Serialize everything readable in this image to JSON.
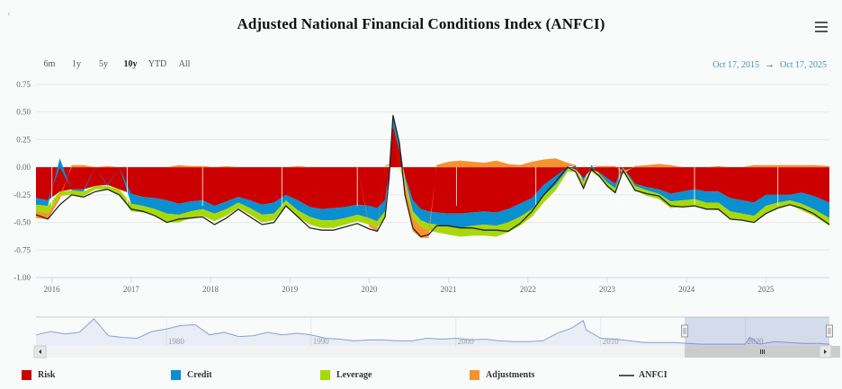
{
  "header": {
    "title": "Adjusted National Financial Conditions Index (ANFCI)",
    "collapse_icon": "chevron-right-icon",
    "menu_icon": "hamburger-menu-icon"
  },
  "range_selector": {
    "buttons": [
      "6m",
      "1y",
      "5y",
      "10y",
      "YTD",
      "All"
    ],
    "active": "10y"
  },
  "date_range": {
    "from": "Oct 17, 2015",
    "arrow": "→",
    "to": "Oct 17, 2025"
  },
  "navigator": {
    "tick_labels": [
      "1980",
      "1990",
      "2000",
      "2010",
      "2020"
    ],
    "selected_from": 2015.8,
    "selected_to": 2025.8,
    "scroll_left_icon": "arrow-left-icon",
    "scroll_right_icon": "arrow-right-icon",
    "grip_icon": "grip-icon"
  },
  "chart_data": {
    "type": "area",
    "stacking": "diverging",
    "title": "Adjusted National Financial Conditions Index (ANFCI)",
    "xlabel": "",
    "ylabel": "",
    "xlim": [
      2015.8,
      2025.8
    ],
    "ylim": [
      -1.0,
      0.75
    ],
    "yticks": [
      0.75,
      0.5,
      0.25,
      0.0,
      -0.25,
      -0.5,
      -0.75,
      -1.0
    ],
    "ytick_labels": [
      "0.75",
      "0.50",
      "0.25",
      "0.00",
      "-0.25",
      "-0.50",
      "-0.75",
      "-1.00"
    ],
    "xticks": [
      2016,
      2017,
      2018,
      2019,
      2020,
      2021,
      2022,
      2023,
      2024,
      2025
    ],
    "xtick_labels": [
      "2016",
      "2017",
      "2018",
      "2019",
      "2020",
      "2021",
      "2022",
      "2023",
      "2024",
      "2025"
    ],
    "grid": true,
    "legend": "bottom",
    "x": [
      2015.8,
      2015.95,
      2016.1,
      2016.25,
      2016.4,
      2016.55,
      2016.7,
      2016.85,
      2017.0,
      2017.15,
      2017.3,
      2017.45,
      2017.6,
      2017.75,
      2017.9,
      2018.05,
      2018.2,
      2018.35,
      2018.5,
      2018.65,
      2018.8,
      2018.95,
      2019.1,
      2019.25,
      2019.4,
      2019.55,
      2019.7,
      2019.85,
      2020.0,
      2020.1,
      2020.2,
      2020.25,
      2020.3,
      2020.38,
      2020.45,
      2020.55,
      2020.65,
      2020.75,
      2020.85,
      2021.0,
      2021.15,
      2021.3,
      2021.45,
      2021.6,
      2021.75,
      2021.9,
      2022.05,
      2022.2,
      2022.35,
      2022.5,
      2022.6,
      2022.7,
      2022.8,
      2022.9,
      2023.0,
      2023.1,
      2023.2,
      2023.35,
      2023.5,
      2023.65,
      2023.8,
      2023.95,
      2024.1,
      2024.25,
      2024.4,
      2024.55,
      2024.7,
      2024.85,
      2025.0,
      2025.15,
      2025.3,
      2025.45,
      2025.6,
      2025.8
    ],
    "series": [
      {
        "name": "Risk",
        "color": "#cc0000",
        "values": [
          -0.28,
          -0.3,
          -0.22,
          -0.2,
          -0.2,
          -0.17,
          -0.16,
          -0.2,
          -0.24,
          -0.27,
          -0.28,
          -0.3,
          -0.33,
          -0.31,
          -0.3,
          -0.35,
          -0.31,
          -0.27,
          -0.3,
          -0.34,
          -0.32,
          -0.25,
          -0.3,
          -0.36,
          -0.38,
          -0.37,
          -0.36,
          -0.34,
          -0.35,
          -0.37,
          -0.3,
          -0.1,
          0.38,
          0.15,
          -0.08,
          -0.3,
          -0.38,
          -0.4,
          -0.41,
          -0.42,
          -0.42,
          -0.41,
          -0.4,
          -0.41,
          -0.38,
          -0.33,
          -0.28,
          -0.16,
          -0.08,
          0.0,
          -0.02,
          -0.1,
          -0.02,
          -0.05,
          -0.1,
          -0.15,
          0.0,
          -0.15,
          -0.18,
          -0.2,
          -0.24,
          -0.22,
          -0.2,
          -0.22,
          -0.22,
          -0.28,
          -0.3,
          -0.32,
          -0.25,
          -0.25,
          -0.25,
          -0.23,
          -0.26,
          -0.32
        ]
      },
      {
        "name": "Credit",
        "color": "#0a8fd0",
        "values": [
          -0.06,
          -0.05,
          0.08,
          -0.01,
          -0.02,
          0.0,
          -0.01,
          0.0,
          -0.09,
          -0.08,
          -0.1,
          -0.12,
          -0.1,
          -0.09,
          -0.08,
          -0.07,
          -0.07,
          -0.05,
          -0.07,
          -0.09,
          -0.1,
          -0.05,
          -0.09,
          -0.09,
          -0.1,
          -0.11,
          -0.1,
          -0.09,
          -0.11,
          -0.12,
          -0.1,
          0.02,
          0.1,
          0.08,
          -0.02,
          -0.1,
          -0.1,
          -0.11,
          -0.11,
          -0.12,
          -0.13,
          -0.12,
          -0.12,
          -0.12,
          -0.12,
          -0.12,
          -0.1,
          -0.1,
          -0.08,
          -0.02,
          0.02,
          -0.03,
          0.02,
          -0.01,
          -0.04,
          -0.04,
          -0.01,
          -0.02,
          -0.03,
          -0.04,
          -0.07,
          -0.08,
          -0.09,
          -0.1,
          -0.1,
          -0.12,
          -0.12,
          -0.12,
          -0.1,
          -0.07,
          -0.05,
          -0.1,
          -0.12,
          -0.14
        ]
      },
      {
        "name": "Leverage",
        "color": "#a8d80a",
        "values": [
          -0.06,
          -0.07,
          -0.04,
          -0.04,
          -0.04,
          -0.03,
          -0.03,
          -0.05,
          -0.07,
          -0.06,
          -0.06,
          -0.08,
          -0.07,
          -0.06,
          -0.06,
          -0.07,
          -0.06,
          -0.05,
          -0.06,
          -0.07,
          -0.06,
          -0.05,
          -0.06,
          -0.07,
          -0.07,
          -0.07,
          -0.06,
          -0.06,
          -0.06,
          -0.06,
          -0.05,
          -0.02,
          0.0,
          -0.01,
          -0.03,
          -0.06,
          -0.06,
          -0.06,
          -0.07,
          -0.07,
          -0.08,
          -0.09,
          -0.1,
          -0.1,
          -0.09,
          -0.08,
          -0.07,
          -0.06,
          -0.05,
          -0.02,
          -0.02,
          -0.04,
          -0.02,
          -0.03,
          -0.04,
          -0.05,
          -0.02,
          -0.04,
          -0.05,
          -0.05,
          -0.06,
          -0.06,
          -0.06,
          -0.06,
          -0.07,
          -0.07,
          -0.06,
          -0.06,
          -0.07,
          -0.05,
          -0.04,
          -0.06,
          -0.06,
          -0.07
        ]
      },
      {
        "name": "Adjustments",
        "color": "#f7922f",
        "values": [
          -0.06,
          -0.05,
          -0.03,
          0.02,
          0.02,
          0.0,
          0.01,
          0.0,
          0.0,
          0.0,
          0.0,
          0.0,
          0.02,
          0.01,
          0.01,
          0.0,
          0.01,
          0.0,
          0.0,
          0.0,
          0.0,
          0.0,
          0.01,
          0.0,
          0.0,
          0.0,
          0.0,
          0.0,
          -0.02,
          -0.03,
          0.01,
          0.01,
          0.01,
          0.0,
          -0.12,
          -0.12,
          -0.1,
          -0.07,
          0.02,
          0.05,
          0.06,
          0.05,
          0.04,
          0.06,
          0.03,
          0.02,
          0.05,
          0.07,
          0.08,
          0.04,
          0.0,
          -0.02,
          0.0,
          0.01,
          0.01,
          0.01,
          -0.03,
          0.01,
          0.02,
          0.03,
          0.02,
          0.0,
          0.0,
          0.0,
          0.01,
          0.0,
          0.0,
          0.02,
          0.02,
          0.02,
          0.02,
          0.02,
          0.02,
          0.01
        ]
      },
      {
        "name": "ANFCI",
        "color": "#222222",
        "type": "line",
        "values": [
          -0.43,
          -0.47,
          -0.34,
          -0.25,
          -0.27,
          -0.22,
          -0.2,
          -0.25,
          -0.38,
          -0.4,
          -0.44,
          -0.5,
          -0.47,
          -0.46,
          -0.45,
          -0.52,
          -0.46,
          -0.38,
          -0.45,
          -0.52,
          -0.5,
          -0.35,
          -0.45,
          -0.55,
          -0.57,
          -0.57,
          -0.54,
          -0.51,
          -0.56,
          -0.58,
          -0.45,
          -0.1,
          0.47,
          0.22,
          -0.25,
          -0.55,
          -0.63,
          -0.61,
          -0.53,
          -0.53,
          -0.55,
          -0.55,
          -0.57,
          -0.57,
          -0.58,
          -0.51,
          -0.4,
          -0.25,
          -0.13,
          0.0,
          -0.04,
          -0.19,
          -0.02,
          -0.08,
          -0.17,
          -0.23,
          -0.03,
          -0.21,
          -0.24,
          -0.26,
          -0.35,
          -0.36,
          -0.35,
          -0.38,
          -0.38,
          -0.47,
          -0.48,
          -0.5,
          -0.42,
          -0.37,
          -0.34,
          -0.37,
          -0.42,
          -0.52
        ]
      }
    ],
    "navigator_series": {
      "name": "NFCI (navigator)",
      "color": "#8a9fd4",
      "x": [
        1971,
        1972,
        1973,
        1974,
        1975,
        1976,
        1977,
        1978,
        1979,
        1980,
        1981,
        1982,
        1983,
        1984,
        1985,
        1986,
        1987,
        1988,
        1989,
        1990,
        1991,
        1992,
        1993,
        1994,
        1995,
        1996,
        1997,
        1998,
        1999,
        2000,
        2001,
        2002,
        2003,
        2004,
        2005,
        2006,
        2007,
        2008,
        2008.8,
        2009,
        2010,
        2011,
        2012,
        2013,
        2014,
        2015,
        2016,
        2017,
        2018,
        2019,
        2020,
        2020.3,
        2021,
        2022,
        2023,
        2024,
        2025,
        2025.8
      ],
      "values": [
        0.6,
        1.0,
        0.7,
        0.9,
        2.5,
        0.5,
        0.3,
        0.2,
        1.0,
        1.3,
        1.7,
        1.8,
        0.6,
        0.9,
        0.4,
        0.5,
        0.9,
        0.6,
        0.8,
        0.6,
        0.2,
        0.1,
        -0.1,
        0.0,
        0.0,
        -0.1,
        -0.1,
        0.2,
        0.1,
        0.2,
        0.0,
        0.1,
        -0.1,
        -0.2,
        -0.2,
        -0.1,
        0.8,
        1.4,
        2.3,
        1.2,
        0.2,
        0.1,
        -0.1,
        -0.3,
        -0.3,
        -0.3,
        -0.4,
        -0.5,
        -0.5,
        -0.5,
        -0.5,
        0.3,
        -0.5,
        -0.2,
        -0.3,
        -0.4,
        -0.4,
        -0.5
      ],
      "xlim": [
        1971,
        2025.8
      ]
    }
  },
  "legend_items": [
    {
      "label": "Risk",
      "color": "#cc0000",
      "kind": "swatch"
    },
    {
      "label": "Credit",
      "color": "#0a8fd0",
      "kind": "swatch"
    },
    {
      "label": "Leverage",
      "color": "#a8d80a",
      "kind": "swatch"
    },
    {
      "label": "Adjustments",
      "color": "#f7922f",
      "kind": "swatch"
    },
    {
      "label": "ANFCI",
      "color": "#555555",
      "kind": "line"
    }
  ]
}
